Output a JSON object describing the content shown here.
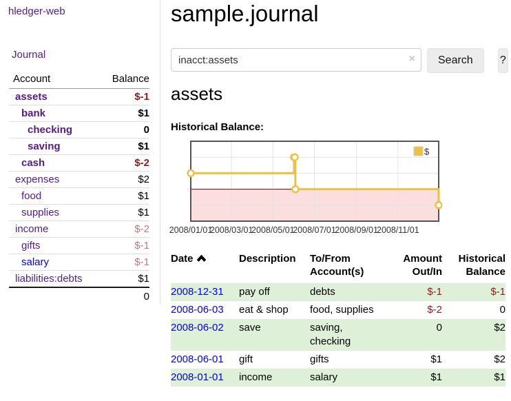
{
  "app": {
    "brand": "hledger-web"
  },
  "nav": {
    "journal": "Journal"
  },
  "sidebar": {
    "columns": {
      "account": "Account",
      "balance": "Balance"
    },
    "accounts": [
      {
        "name": "assets",
        "balance": "$-1",
        "indent": 1,
        "bold": true,
        "neg": "dark"
      },
      {
        "name": "bank",
        "balance": "$1",
        "indent": 2,
        "bold": true
      },
      {
        "name": "checking",
        "balance": "0",
        "indent": 3,
        "bold": true
      },
      {
        "name": "saving",
        "balance": "$1",
        "indent": 3,
        "bold": true
      },
      {
        "name": "cash",
        "balance": "$-2",
        "indent": 2,
        "bold": true,
        "neg": "dark"
      },
      {
        "name": "expenses",
        "balance": "$2",
        "indent": 1
      },
      {
        "name": "food",
        "balance": "$1",
        "indent": 2
      },
      {
        "name": "supplies",
        "balance": "$1",
        "indent": 2
      },
      {
        "name": "income",
        "balance": "$-2",
        "indent": 1,
        "neg": "muted"
      },
      {
        "name": "gifts",
        "balance": "$-1",
        "indent": 2,
        "neg": "muted"
      },
      {
        "name": "salary",
        "balance": "$-1",
        "indent": 2,
        "neg": "muted",
        "unvisited": true
      },
      {
        "name": "liabilities:debts",
        "balance": "$1",
        "indent": 1
      }
    ],
    "total": "0"
  },
  "header": {
    "title": "sample.journal"
  },
  "search": {
    "value": "inacct:assets",
    "clear_icon": "×",
    "button_label": "Search",
    "help_label": "?"
  },
  "account_page": {
    "title": "assets",
    "section_label": "Historical Balance:"
  },
  "chart_data": {
    "type": "line",
    "step": true,
    "title": "Historical Balance:",
    "series": [
      {
        "name": "$",
        "color": "#edc240",
        "points": [
          [
            "2008-01-01",
            1
          ],
          [
            "2008-06-01",
            2
          ],
          [
            "2008-06-02",
            2
          ],
          [
            "2008-06-03",
            0
          ],
          [
            "2008-12-31",
            -1
          ]
        ]
      }
    ],
    "x_domain": [
      "2008-01-01",
      "2008-12-31"
    ],
    "x_tick_labels": [
      "2008/01/01",
      "2008/03/01",
      "2008/05/01",
      "2008/07/01",
      "2008/09/01",
      "2008/11/01"
    ],
    "y_tick_labels": [
      "3.0",
      "2.0",
      "1.0",
      "0.0",
      "-1.0",
      "-2.0"
    ],
    "ylim": [
      -2,
      3
    ],
    "legend": {
      "label": "$",
      "position": "top-right"
    },
    "colors": {
      "negative_fill": "#fbdfdf",
      "zero_line": "#8b0000",
      "border": "#545454",
      "grid": "#e3e3e3",
      "tick_text": "#333333"
    }
  },
  "register": {
    "columns": [
      "Date",
      "Description",
      "To/From Account(s)",
      "Amount Out/In",
      "Historical Balance"
    ],
    "sort": {
      "column": "Date",
      "direction": "asc"
    },
    "rows": [
      {
        "date": "2008-12-31",
        "description": "pay off",
        "accounts": "debts",
        "amount": "$-1",
        "balance": "$-1",
        "amount_neg": true,
        "balance_neg": true
      },
      {
        "date": "2008-06-03",
        "description": "eat & shop",
        "accounts": "food, supplies",
        "amount": "$-2",
        "balance": "0",
        "amount_neg": true
      },
      {
        "date": "2008-06-02",
        "description": "save",
        "accounts": "saving, checking",
        "amount": "0",
        "balance": "$2"
      },
      {
        "date": "2008-06-01",
        "description": "gift",
        "accounts": "gifts",
        "amount": "$1",
        "balance": "$2"
      },
      {
        "date": "2008-01-01",
        "description": "income",
        "accounts": "salary",
        "amount": "$1",
        "balance": "$1"
      }
    ]
  }
}
